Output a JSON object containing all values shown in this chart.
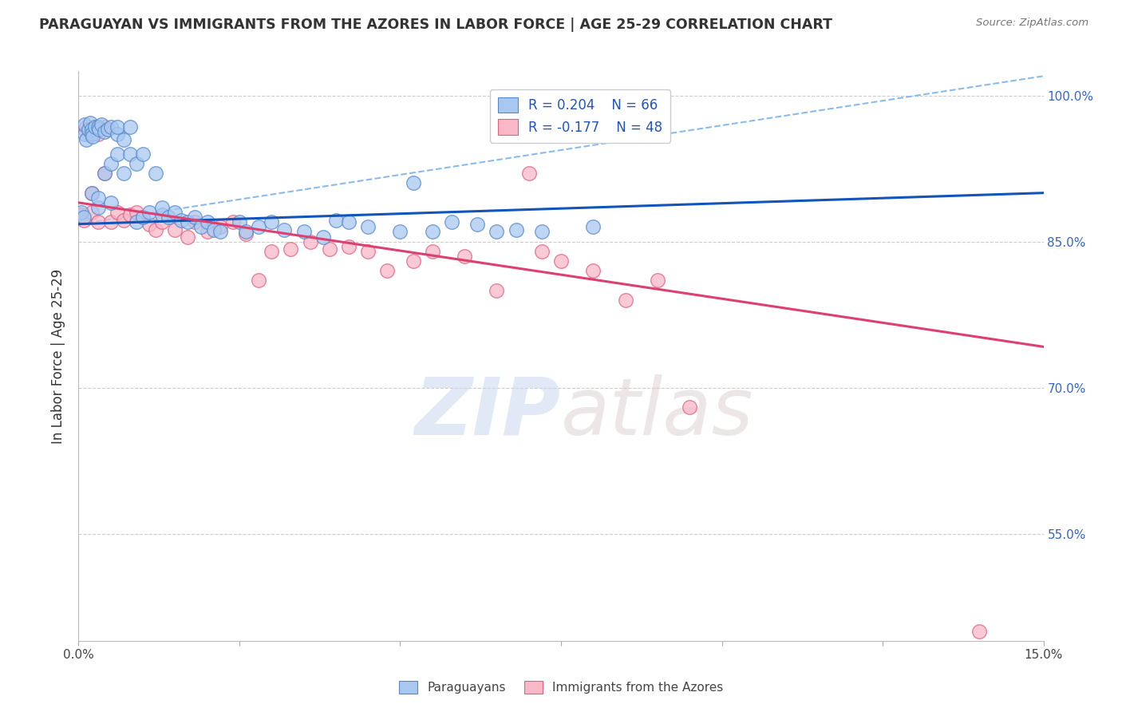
{
  "title": "PARAGUAYAN VS IMMIGRANTS FROM THE AZORES IN LABOR FORCE | AGE 25-29 CORRELATION CHART",
  "source": "Source: ZipAtlas.com",
  "ylabel": "In Labor Force | Age 25-29",
  "xmin": 0.0,
  "xmax": 0.15,
  "ymin": 0.44,
  "ymax": 1.025,
  "yticks": [
    0.55,
    0.7,
    0.85,
    1.0
  ],
  "ytick_labels": [
    "55.0%",
    "70.0%",
    "85.0%",
    "100.0%"
  ],
  "xticks": [
    0.0,
    0.025,
    0.05,
    0.075,
    0.1,
    0.125,
    0.15
  ],
  "xtick_labels": [
    "0.0%",
    "",
    "",
    "",
    "",
    "",
    "15.0%"
  ],
  "legend_blue_r": "R = 0.204",
  "legend_blue_n": "N = 66",
  "legend_pink_r": "R = -0.177",
  "legend_pink_n": "N = 48",
  "legend_label_blue": "Paraguayans",
  "legend_label_pink": "Immigrants from the Azores",
  "blue_fill": "#A8C8F0",
  "blue_edge": "#5588CC",
  "pink_fill": "#F8B8C8",
  "pink_edge": "#E06080",
  "blue_line_color": "#1155BB",
  "pink_line_color": "#DD4070",
  "dashed_line_color": "#88BBEE",
  "blue_scatter_x": [
    0.0005,
    0.0008,
    0.001,
    0.001,
    0.0012,
    0.0015,
    0.0018,
    0.002,
    0.002,
    0.002,
    0.0022,
    0.0025,
    0.003,
    0.003,
    0.003,
    0.0032,
    0.0035,
    0.004,
    0.004,
    0.0045,
    0.005,
    0.005,
    0.005,
    0.006,
    0.006,
    0.006,
    0.007,
    0.007,
    0.008,
    0.008,
    0.009,
    0.009,
    0.01,
    0.01,
    0.011,
    0.012,
    0.013,
    0.013,
    0.014,
    0.015,
    0.016,
    0.017,
    0.018,
    0.019,
    0.02,
    0.021,
    0.022,
    0.025,
    0.026,
    0.028,
    0.03,
    0.032,
    0.035,
    0.038,
    0.04,
    0.042,
    0.045,
    0.05,
    0.052,
    0.055,
    0.058,
    0.062,
    0.065,
    0.068,
    0.072,
    0.08
  ],
  "blue_scatter_y": [
    0.88,
    0.875,
    0.96,
    0.97,
    0.955,
    0.965,
    0.972,
    0.9,
    0.965,
    0.96,
    0.958,
    0.968,
    0.885,
    0.895,
    0.968,
    0.965,
    0.97,
    0.92,
    0.963,
    0.965,
    0.89,
    0.93,
    0.968,
    0.94,
    0.96,
    0.968,
    0.92,
    0.955,
    0.94,
    0.968,
    0.87,
    0.93,
    0.875,
    0.94,
    0.88,
    0.92,
    0.878,
    0.885,
    0.875,
    0.88,
    0.872,
    0.87,
    0.875,
    0.865,
    0.87,
    0.862,
    0.86,
    0.87,
    0.86,
    0.865,
    0.87,
    0.862,
    0.86,
    0.855,
    0.872,
    0.87,
    0.865,
    0.86,
    0.91,
    0.86,
    0.87,
    0.868,
    0.86,
    0.862,
    0.86,
    0.865
  ],
  "pink_scatter_x": [
    0.0005,
    0.0008,
    0.001,
    0.0012,
    0.0015,
    0.002,
    0.002,
    0.0025,
    0.003,
    0.003,
    0.004,
    0.004,
    0.005,
    0.006,
    0.007,
    0.008,
    0.009,
    0.01,
    0.011,
    0.012,
    0.013,
    0.015,
    0.017,
    0.018,
    0.02,
    0.022,
    0.024,
    0.026,
    0.028,
    0.03,
    0.033,
    0.036,
    0.039,
    0.042,
    0.045,
    0.048,
    0.052,
    0.055,
    0.06,
    0.065,
    0.07,
    0.072,
    0.075,
    0.08,
    0.085,
    0.09,
    0.095,
    0.14
  ],
  "pink_scatter_y": [
    0.878,
    0.872,
    0.965,
    0.968,
    0.96,
    0.88,
    0.9,
    0.968,
    0.87,
    0.96,
    0.92,
    0.968,
    0.87,
    0.88,
    0.872,
    0.878,
    0.88,
    0.875,
    0.868,
    0.862,
    0.87,
    0.862,
    0.855,
    0.87,
    0.86,
    0.865,
    0.87,
    0.858,
    0.81,
    0.84,
    0.842,
    0.85,
    0.842,
    0.845,
    0.84,
    0.82,
    0.83,
    0.84,
    0.835,
    0.8,
    0.92,
    0.84,
    0.83,
    0.82,
    0.79,
    0.81,
    0.68,
    0.45
  ],
  "blue_trend_x": [
    0.0,
    0.15
  ],
  "blue_trend_y": [
    0.868,
    0.9
  ],
  "pink_trend_x": [
    0.0,
    0.15
  ],
  "pink_trend_y": [
    0.89,
    0.742
  ],
  "dashed_trend_x": [
    0.0,
    0.15
  ],
  "dashed_trend_y": [
    0.868,
    1.02
  ],
  "watermark_zip": "ZIP",
  "watermark_atlas": "atlas",
  "bg_color": "#FFFFFF",
  "grid_color": "#CCCCCC"
}
